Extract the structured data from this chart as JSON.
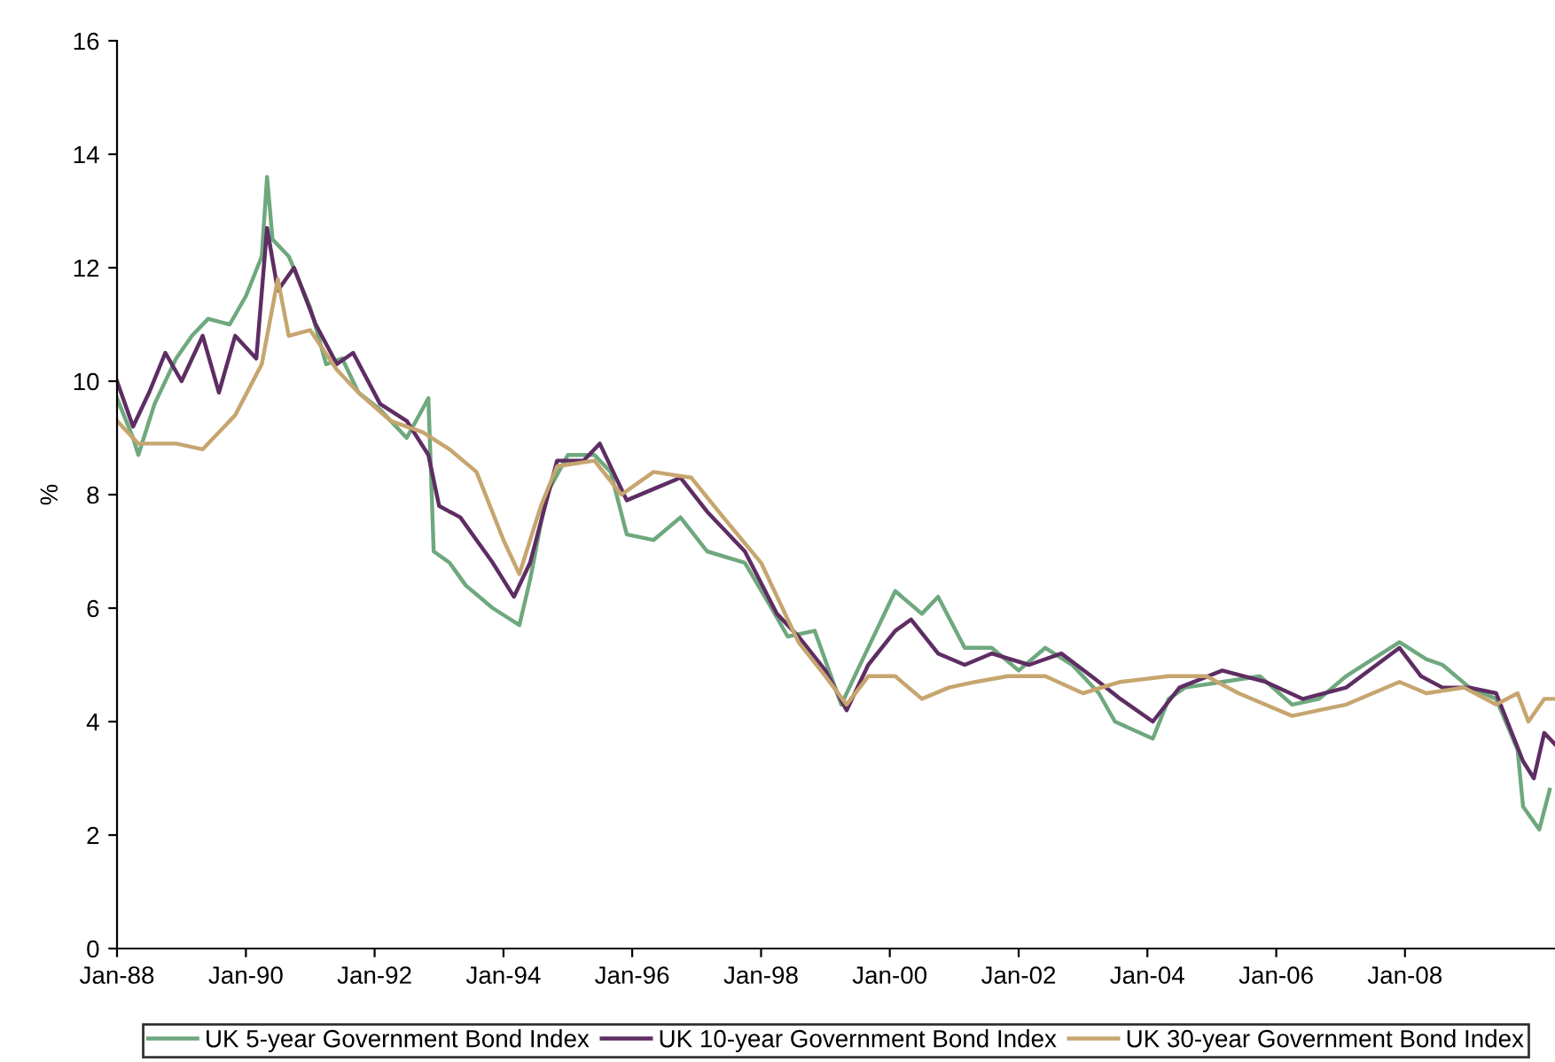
{
  "chart_data": {
    "type": "line",
    "ylabel": "%",
    "xlim": [
      "1988-01",
      "2010-05"
    ],
    "ylim": [
      0,
      16
    ],
    "yticks": [
      0,
      2,
      4,
      6,
      8,
      10,
      12,
      14,
      16
    ],
    "xticks": [
      {
        "value": "1988-01",
        "label": "Jan-88"
      },
      {
        "value": "1990-01",
        "label": "Jan-90"
      },
      {
        "value": "1992-01",
        "label": "Jan-92"
      },
      {
        "value": "1994-01",
        "label": "Jan-94"
      },
      {
        "value": "1996-01",
        "label": "Jan-96"
      },
      {
        "value": "1998-01",
        "label": "Jan-98"
      },
      {
        "value": "2000-01",
        "label": "Jan-00"
      },
      {
        "value": "2002-01",
        "label": "Jan-02"
      },
      {
        "value": "2004-01",
        "label": "Jan-04"
      },
      {
        "value": "2006-01",
        "label": "Jan-06"
      },
      {
        "value": "2008-01",
        "label": "Jan-08"
      }
    ],
    "grid": false,
    "legend": "bottom",
    "marker": "none",
    "line_style": "solid",
    "series": [
      {
        "name": "UK 5-year Government Bond Index",
        "color": "#6fa87e",
        "x": [
          "1988-01",
          "1988-04",
          "1988-05",
          "1988-08",
          "1988-12",
          "1989-03",
          "1989-06",
          "1989-10",
          "1990-01",
          "1990-04",
          "1990-05",
          "1990-06",
          "1990-09",
          "1991-01",
          "1991-04",
          "1991-07",
          "1991-10",
          "1992-02",
          "1992-07",
          "1992-11",
          "1992-12",
          "1993-03",
          "1993-06",
          "1993-11",
          "1994-04",
          "1994-06",
          "1994-09",
          "1995-01",
          "1995-06",
          "1995-09",
          "1995-12",
          "1996-05",
          "1996-10",
          "1997-03",
          "1997-10",
          "1998-03",
          "1998-06",
          "1998-11",
          "1999-04",
          "1999-07",
          "2000-02",
          "2000-07",
          "2000-10",
          "2001-03",
          "2001-08",
          "2002-01",
          "2002-06",
          "2002-11",
          "2003-04",
          "2003-07",
          "2004-02",
          "2004-05",
          "2004-08",
          "2005-03",
          "2005-10",
          "2006-04",
          "2006-09",
          "2007-02",
          "2007-12",
          "2008-05",
          "2008-08",
          "2009-01",
          "2009-06",
          "2009-10",
          "2009-11",
          "2010-02",
          "2010-04"
        ],
        "values": [
          9.7,
          9.0,
          8.7,
          9.6,
          10.4,
          10.8,
          11.1,
          11.0,
          11.5,
          12.2,
          13.6,
          12.5,
          12.2,
          11.3,
          10.3,
          10.4,
          9.8,
          9.5,
          9.0,
          9.7,
          7.0,
          6.8,
          6.4,
          6.0,
          5.7,
          6.5,
          8.0,
          8.7,
          8.7,
          8.4,
          7.3,
          7.2,
          7.6,
          7.0,
          6.8,
          6.0,
          5.5,
          5.6,
          4.3,
          4.9,
          6.3,
          5.9,
          6.2,
          5.3,
          5.3,
          4.9,
          5.3,
          5.0,
          4.5,
          4.0,
          3.7,
          4.4,
          4.6,
          4.7,
          4.8,
          4.3,
          4.4,
          4.8,
          5.4,
          5.1,
          5.0,
          4.6,
          4.4,
          3.5,
          2.5,
          2.1,
          2.8
        ]
      },
      {
        "name": "UK 10-year Government Bond Index",
        "color": "#5e2d63",
        "x": [
          "1988-01",
          "1988-04",
          "1988-07",
          "1988-10",
          "1989-01",
          "1989-05",
          "1989-08",
          "1989-11",
          "1990-03",
          "1990-05",
          "1990-07",
          "1990-10",
          "1991-02",
          "1991-06",
          "1991-09",
          "1992-02",
          "1992-07",
          "1992-11",
          "1993-01",
          "1993-05",
          "1993-08",
          "1993-11",
          "1994-03",
          "1994-06",
          "1994-11",
          "1995-04",
          "1995-07",
          "1995-12",
          "1996-05",
          "1996-10",
          "1997-03",
          "1997-10",
          "1998-04",
          "1998-08",
          "1999-01",
          "1999-05",
          "1999-09",
          "2000-02",
          "2000-05",
          "2000-10",
          "2001-03",
          "2001-08",
          "2002-03",
          "2002-09",
          "2003-04",
          "2003-08",
          "2004-02",
          "2004-07",
          "2005-03",
          "2005-11",
          "2006-06",
          "2007-02",
          "2007-12",
          "2008-04",
          "2008-08",
          "2009-01",
          "2009-06",
          "2009-11",
          "2010-01",
          "2010-03",
          "2010-05"
        ],
        "values": [
          10.0,
          9.2,
          9.8,
          10.5,
          10.0,
          10.8,
          9.8,
          10.8,
          10.4,
          12.7,
          11.6,
          12.0,
          11.0,
          10.3,
          10.5,
          9.6,
          9.3,
          8.7,
          7.8,
          7.6,
          7.2,
          6.8,
          6.2,
          6.8,
          8.6,
          8.6,
          8.9,
          7.9,
          8.1,
          8.3,
          7.7,
          7.0,
          5.9,
          5.5,
          4.9,
          4.2,
          5.0,
          5.6,
          5.8,
          5.2,
          5.0,
          5.2,
          5.0,
          5.2,
          4.7,
          4.4,
          4.0,
          4.6,
          4.9,
          4.7,
          4.4,
          4.6,
          5.3,
          4.8,
          4.6,
          4.6,
          4.5,
          3.3,
          3.0,
          3.8,
          3.6
        ]
      },
      {
        "name": "UK 30-year Government Bond Index",
        "color": "#c6a56f",
        "x": [
          "1988-01",
          "1988-05",
          "1988-12",
          "1989-05",
          "1989-11",
          "1990-04",
          "1990-07",
          "1990-09",
          "1991-01",
          "1991-06",
          "1991-10",
          "1992-04",
          "1992-10",
          "1993-03",
          "1993-08",
          "1994-01",
          "1994-04",
          "1994-08",
          "1994-11",
          "1995-06",
          "1995-11",
          "1996-05",
          "1996-12",
          "1997-06",
          "1998-01",
          "1998-08",
          "1999-01",
          "1999-05",
          "1999-09",
          "2000-02",
          "2000-07",
          "2000-12",
          "2001-05",
          "2001-11",
          "2002-06",
          "2003-01",
          "2003-08",
          "2004-05",
          "2004-12",
          "2005-06",
          "2006-04",
          "2006-09",
          "2007-02",
          "2007-12",
          "2008-05",
          "2008-12",
          "2009-06",
          "2009-10",
          "2009-12",
          "2010-03",
          "2010-05"
        ],
        "values": [
          9.3,
          8.9,
          8.9,
          8.8,
          9.4,
          10.3,
          11.8,
          10.8,
          10.9,
          10.2,
          9.8,
          9.3,
          9.1,
          8.8,
          8.4,
          7.2,
          6.6,
          7.8,
          8.5,
          8.6,
          8.0,
          8.4,
          8.3,
          7.6,
          6.8,
          5.4,
          4.8,
          4.3,
          4.8,
          4.8,
          4.4,
          4.6,
          4.7,
          4.8,
          4.8,
          4.5,
          4.7,
          4.8,
          4.8,
          4.5,
          4.1,
          4.2,
          4.3,
          4.7,
          4.5,
          4.6,
          4.3,
          4.5,
          4.0,
          4.4,
          4.4
        ]
      }
    ]
  }
}
